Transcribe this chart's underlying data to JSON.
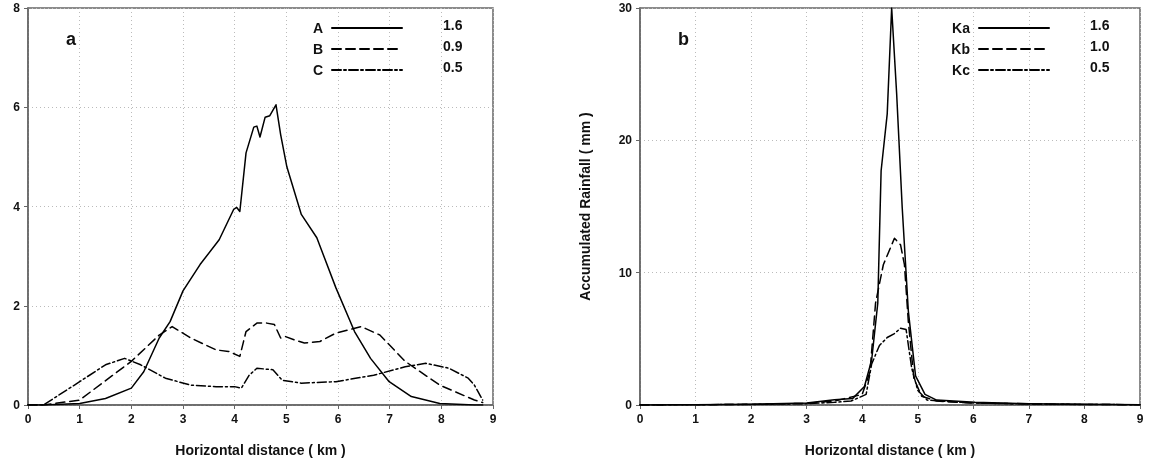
{
  "chart_data": [
    {
      "type": "line",
      "title": "a",
      "xlabel": "Horizontal distance ( km )",
      "xlim": [
        0,
        9
      ],
      "xticks": [
        0,
        1,
        2,
        3,
        4,
        5,
        6,
        7,
        8,
        9
      ],
      "ylim": [
        0,
        8
      ],
      "yticks": [
        0,
        2,
        4,
        6,
        8
      ],
      "grid": true,
      "legend": "top right",
      "marker": "none",
      "annotations": [
        "1.6",
        "0.9",
        "0.5"
      ],
      "series": [
        {
          "name": "A",
          "color": "#000000",
          "line_style": "solid",
          "x": [
            0,
            0.3,
            1,
            1.5,
            2,
            2.24,
            2.54,
            2.75,
            3.0,
            3.33,
            3.7,
            3.98,
            4.04,
            4.1,
            4.22,
            4.37,
            4.43,
            4.49,
            4.59,
            4.68,
            4.8,
            4.89,
            5.01,
            5.29,
            5.59,
            5.96,
            6.32,
            6.63,
            6.99,
            7.42,
            7.97,
            8.64,
            8.8
          ],
          "values": [
            0,
            0,
            0.03,
            0.13,
            0.34,
            0.67,
            1.35,
            1.68,
            2.3,
            2.83,
            3.33,
            3.94,
            3.98,
            3.9,
            5.08,
            5.6,
            5.62,
            5.4,
            5.8,
            5.83,
            6.05,
            5.45,
            4.8,
            3.84,
            3.37,
            2.36,
            1.48,
            0.94,
            0.47,
            0.17,
            0.03,
            0,
            0
          ]
        },
        {
          "name": "B",
          "color": "#000000",
          "line_style": "dashed",
          "x": [
            0,
            0.3,
            1,
            2,
            2.54,
            2.79,
            3.15,
            3.64,
            3.88,
            4.1,
            4.22,
            4.43,
            4.62,
            4.77,
            4.89,
            4.98,
            5.16,
            5.35,
            5.65,
            5.96,
            6.45,
            6.81,
            7.3,
            7.97,
            8.64,
            8.8
          ],
          "values": [
            0,
            0,
            0.1,
            0.88,
            1.41,
            1.58,
            1.35,
            1.11,
            1.08,
            0.98,
            1.48,
            1.65,
            1.65,
            1.62,
            1.35,
            1.38,
            1.31,
            1.25,
            1.28,
            1.45,
            1.58,
            1.41,
            0.88,
            0.4,
            0.1,
            0.05
          ]
        },
        {
          "name": "C",
          "color": "#000000",
          "line_style": "dashdot",
          "x": [
            0,
            0.3,
            1,
            1.5,
            1.87,
            2.18,
            2.66,
            3.15,
            3.64,
            4.0,
            4.13,
            4.28,
            4.43,
            4.74,
            4.92,
            5.29,
            5.96,
            6.69,
            7.3,
            7.7,
            8.15,
            8.52,
            8.64,
            8.8
          ],
          "values": [
            0,
            0,
            0.47,
            0.81,
            0.94,
            0.81,
            0.54,
            0.4,
            0.37,
            0.37,
            0.34,
            0.6,
            0.74,
            0.71,
            0.5,
            0.44,
            0.47,
            0.6,
            0.77,
            0.84,
            0.74,
            0.54,
            0.4,
            0.1
          ]
        }
      ]
    },
    {
      "type": "line",
      "title": "b",
      "xlabel": "Horizontal distance ( km )",
      "ylabel": "Accumulated Rainfall ( mm )",
      "xlim": [
        0,
        9
      ],
      "xticks": [
        0,
        1,
        2,
        3,
        4,
        5,
        6,
        7,
        8,
        9
      ],
      "ylim": [
        0,
        30
      ],
      "yticks": [
        0,
        10,
        20,
        30
      ],
      "grid": true,
      "legend": "top right",
      "marker": "none",
      "annotations": [
        "1.6",
        "1.0",
        "0.5"
      ],
      "series": [
        {
          "name": "Ka",
          "color": "#000000",
          "line_style": "solid",
          "x": [
            0,
            1,
            2,
            3,
            3.5,
            3.83,
            4.04,
            4.17,
            4.28,
            4.34,
            4.45,
            4.53,
            4.62,
            4.72,
            4.83,
            4.96,
            5.13,
            5.34,
            6.03,
            7,
            8,
            9
          ],
          "values": [
            0,
            0.02,
            0.05,
            0.15,
            0.4,
            0.5,
            1.4,
            3.4,
            7.7,
            17.7,
            22,
            30,
            23.5,
            14.9,
            7.1,
            2.2,
            0.8,
            0.37,
            0.2,
            0.1,
            0.05,
            0.02
          ]
        },
        {
          "name": "Kb",
          "color": "#000000",
          "line_style": "dashed",
          "x": [
            0,
            1,
            2,
            3,
            3.5,
            4.0,
            4.14,
            4.24,
            4.38,
            4.52,
            4.58,
            4.69,
            4.76,
            4.83,
            4.93,
            5.07,
            5.34,
            6,
            7,
            8,
            9
          ],
          "values": [
            0,
            0.02,
            0.05,
            0.12,
            0.3,
            0.8,
            2.5,
            7.7,
            10.6,
            12,
            12.6,
            12.1,
            10.6,
            6.3,
            2,
            0.66,
            0.3,
            0.15,
            0.08,
            0.04,
            0.02
          ]
        },
        {
          "name": "Kc",
          "color": "#000000",
          "line_style": "dashdot",
          "x": [
            0,
            1,
            2,
            3,
            3.5,
            3.8,
            4.07,
            4.17,
            4.31,
            4.45,
            4.58,
            4.69,
            4.79,
            4.89,
            5.0,
            5.17,
            6,
            7,
            8,
            9
          ],
          "values": [
            0,
            0.02,
            0.04,
            0.1,
            0.2,
            0.3,
            0.8,
            3.1,
            4.5,
            5.1,
            5.4,
            5.8,
            5.7,
            2.8,
            1.1,
            0.37,
            0.15,
            0.08,
            0.04,
            0.02
          ]
        }
      ]
    }
  ]
}
